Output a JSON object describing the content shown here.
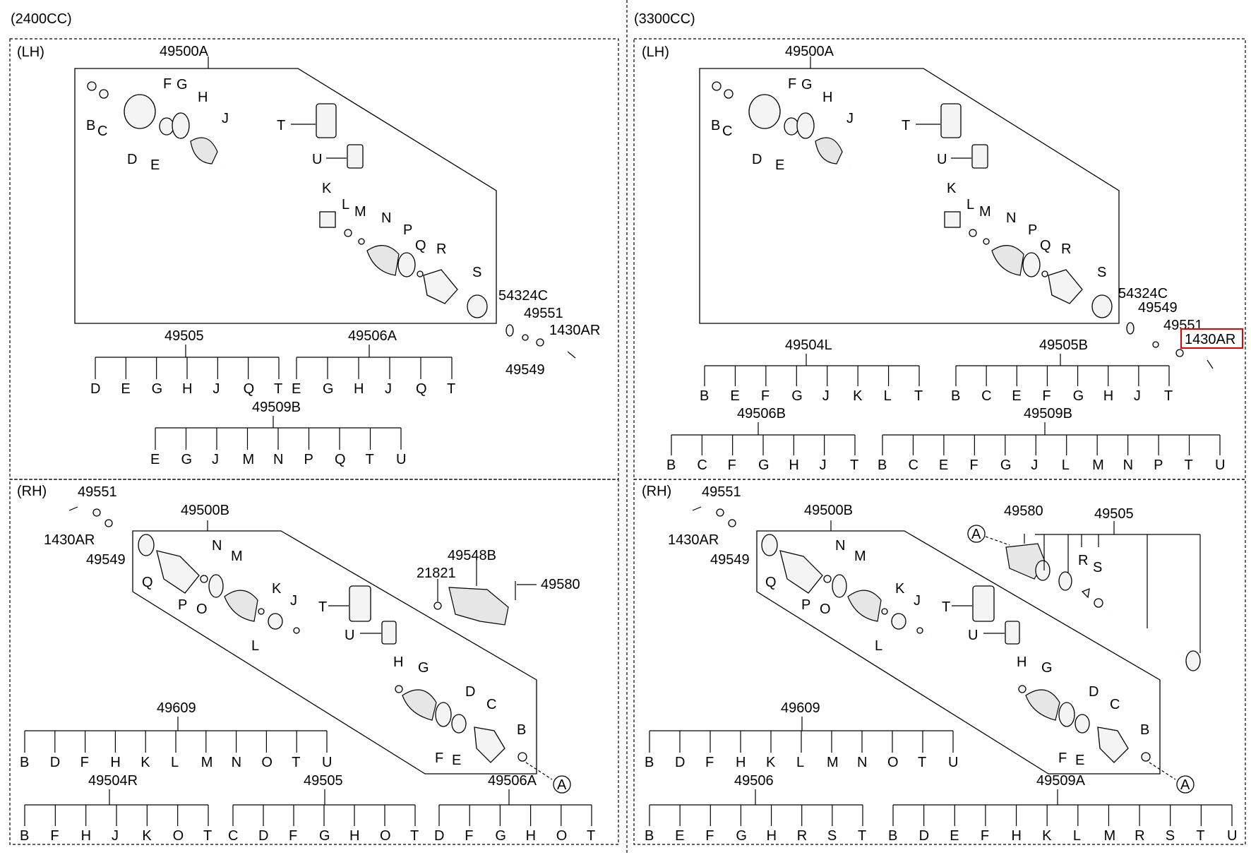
{
  "sections": [
    {
      "engine": "(2400CC)",
      "lh": {
        "side": "(LH)",
        "assembly": "49500A",
        "letters": {
          "B": "B",
          "C": "C",
          "D": "D",
          "E": "E",
          "F": "F",
          "G": "G",
          "H": "H",
          "J": "J",
          "K": "K",
          "L": "L",
          "M": "M",
          "N": "N",
          "P": "P",
          "Q": "Q",
          "R": "R",
          "S": "S",
          "T": "T",
          "U": "U"
        },
        "extra_parts": [
          "54324C",
          "49551",
          "1430AR",
          "49549"
        ],
        "kits": [
          {
            "code": "49505",
            "letters": [
              "D",
              "E",
              "G",
              "H",
              "J",
              "Q",
              "T"
            ]
          },
          {
            "code": "49506A",
            "letters": [
              "E",
              "G",
              "H",
              "J",
              "Q",
              "T"
            ]
          },
          {
            "code": "49509B",
            "letters": [
              "E",
              "G",
              "J",
              "M",
              "N",
              "P",
              "Q",
              "T",
              "U"
            ]
          }
        ]
      },
      "rh": {
        "side": "(RH)",
        "assembly": "49500B",
        "extra_parts": [
          "49551",
          "1430AR",
          "49549",
          "49548B",
          "21821",
          "49580"
        ],
        "circle": "A",
        "kits": [
          {
            "code": "49609",
            "letters": [
              "B",
              "D",
              "F",
              "H",
              "K",
              "L",
              "M",
              "N",
              "O",
              "T",
              "U"
            ]
          },
          {
            "code": "49504R",
            "letters": [
              "B",
              "F",
              "H",
              "J",
              "K",
              "O",
              "T"
            ]
          },
          {
            "code": "49505",
            "letters": [
              "C",
              "D",
              "F",
              "G",
              "H",
              "O",
              "T"
            ]
          },
          {
            "code": "49506A",
            "letters": [
              "D",
              "F",
              "G",
              "H",
              "O",
              "T"
            ]
          }
        ]
      }
    },
    {
      "engine": "(3300CC)",
      "lh": {
        "side": "(LH)",
        "assembly": "49500A",
        "extra_parts": [
          "54324C",
          "49549",
          "49551",
          "1430AR"
        ],
        "highlighted": "1430AR",
        "kits": [
          {
            "code": "49504L",
            "letters": [
              "B",
              "E",
              "F",
              "G",
              "J",
              "K",
              "L",
              "T"
            ]
          },
          {
            "code": "49505B",
            "letters": [
              "B",
              "C",
              "E",
              "F",
              "G",
              "H",
              "J",
              "T"
            ]
          },
          {
            "code": "49506B",
            "letters": [
              "B",
              "C",
              "F",
              "G",
              "H",
              "J",
              "T"
            ]
          },
          {
            "code": "49509B",
            "letters": [
              "B",
              "C",
              "E",
              "F",
              "G",
              "J",
              "L",
              "M",
              "N",
              "P",
              "T",
              "U"
            ]
          }
        ]
      },
      "rh": {
        "side": "(RH)",
        "assembly": "49500B",
        "extra_parts": [
          "49551",
          "1430AR",
          "49549",
          "49580",
          "49505"
        ],
        "circle": "A",
        "kits": [
          {
            "code": "49609",
            "letters": [
              "B",
              "D",
              "F",
              "H",
              "K",
              "L",
              "M",
              "N",
              "O",
              "T",
              "U"
            ]
          },
          {
            "code": "49506",
            "letters": [
              "B",
              "E",
              "F",
              "G",
              "H",
              "R",
              "S",
              "T"
            ]
          },
          {
            "code": "49509A",
            "letters": [
              "B",
              "D",
              "E",
              "F",
              "H",
              "K",
              "L",
              "M",
              "R",
              "S",
              "T",
              "U"
            ]
          }
        ]
      }
    }
  ]
}
